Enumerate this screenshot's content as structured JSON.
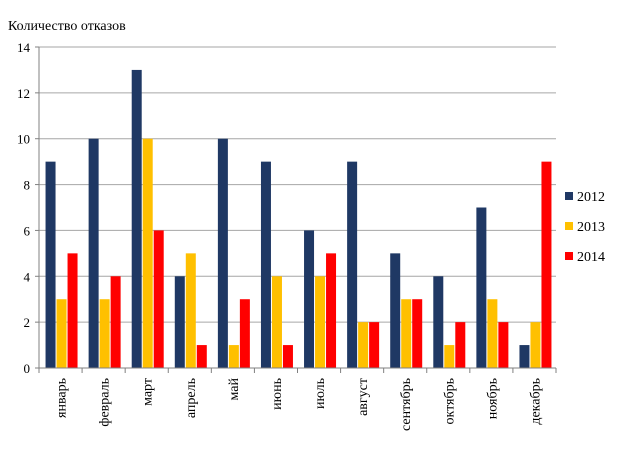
{
  "chart_data": {
    "type": "bar",
    "title": "Количество отказов",
    "categories": [
      "январь",
      "февраль",
      "март",
      "апрель",
      "май",
      "июнь",
      "июль",
      "август",
      "сентябрь",
      "октябрь",
      "ноябрь",
      "декабрь"
    ],
    "series": [
      {
        "name": "2012",
        "color": "#1f3864",
        "values": [
          9,
          10,
          13,
          4,
          10,
          9,
          6,
          9,
          5,
          4,
          7,
          1
        ]
      },
      {
        "name": "2013",
        "color": "#ffc000",
        "values": [
          3,
          3,
          10,
          5,
          1,
          4,
          4,
          2,
          3,
          1,
          3,
          2
        ]
      },
      {
        "name": "2014",
        "color": "#ff0000",
        "values": [
          5,
          4,
          6,
          1,
          3,
          1,
          5,
          2,
          3,
          2,
          2,
          9
        ]
      }
    ],
    "ylim": [
      0,
      14
    ],
    "yticks": [
      0,
      2,
      4,
      6,
      8,
      10,
      12,
      14
    ],
    "grid": true,
    "legend": "right"
  }
}
